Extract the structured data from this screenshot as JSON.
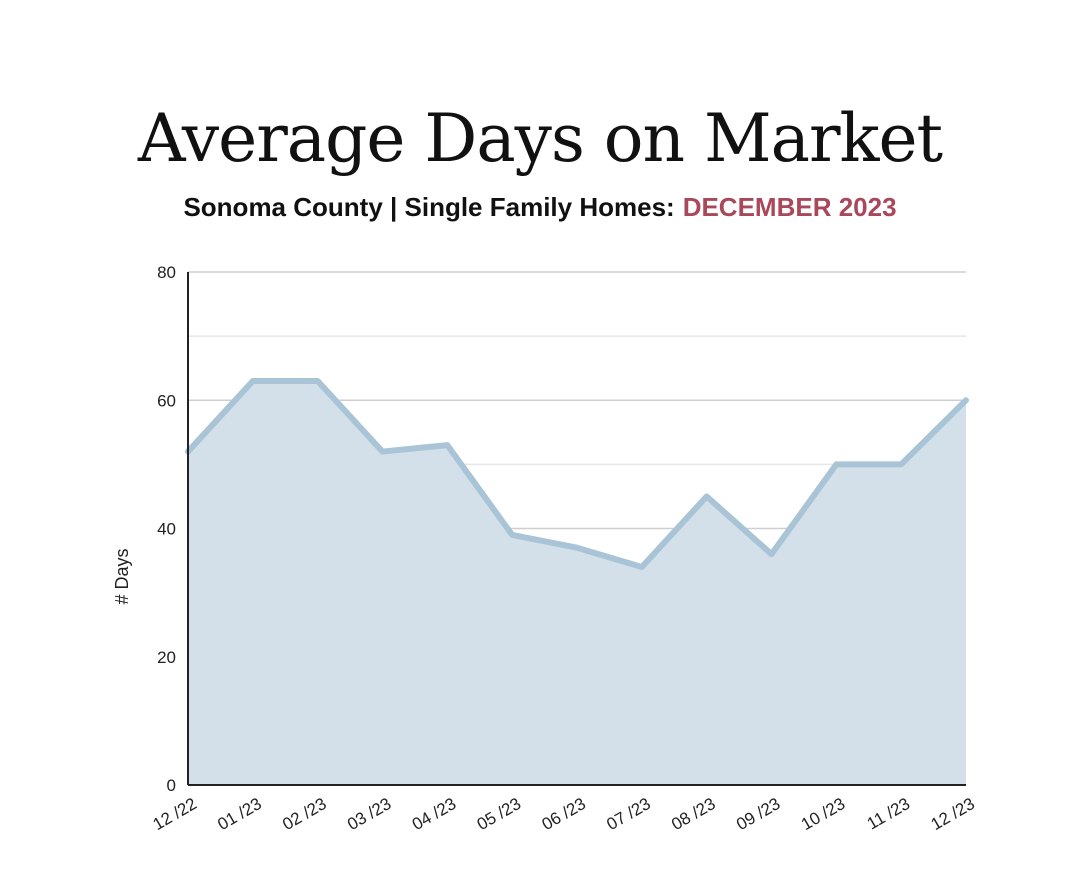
{
  "header": {
    "title": "Average Days on Market",
    "subtitle_main": "Sonoma County | Single Family Homes:",
    "subtitle_accent": "DECEMBER 2023"
  },
  "colors": {
    "accent": "#a8485a",
    "line": "#a9c4d6",
    "area": "#d3e0e9",
    "grid_major": "#cfcfcf",
    "grid_minor": "#e6e6e6",
    "axis": "#222222"
  },
  "chart_data": {
    "type": "area",
    "title": "Average Days on Market",
    "xlabel": "",
    "ylabel": "# Days",
    "categories": [
      "12 /22",
      "01 /23",
      "02 /23",
      "03 /23",
      "04 /23",
      "05 /23",
      "06 /23",
      "07 /23",
      "08 /23",
      "09 /23",
      "10 /23",
      "11 /23",
      "12 /23"
    ],
    "values": [
      52,
      63,
      63,
      52,
      53,
      39,
      37,
      34,
      45,
      36,
      50,
      50,
      60
    ],
    "ylim": [
      0,
      80
    ],
    "y_ticks": [
      0,
      20,
      40,
      60,
      80
    ],
    "grid": true,
    "legend": "none"
  }
}
